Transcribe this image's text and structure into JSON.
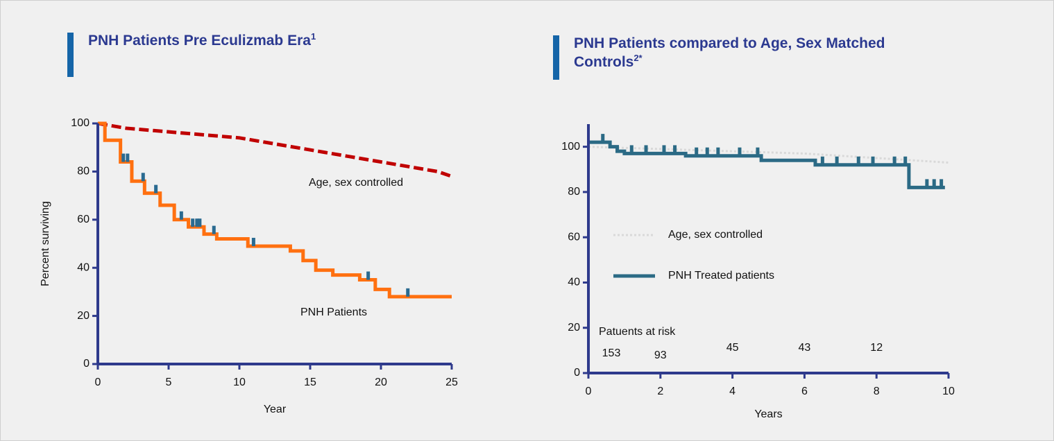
{
  "chart_data": [
    {
      "type": "line",
      "title": "PNH Patients Pre Eculizmab Era",
      "title_note": "1",
      "xlabel": "Year",
      "ylabel": "Percent surviving",
      "xlim": [
        0,
        25
      ],
      "xticks": [
        0,
        5,
        10,
        15,
        20,
        25
      ],
      "ylim": [
        0,
        100
      ],
      "yticks": [
        0,
        20,
        40,
        60,
        80,
        100
      ],
      "series": [
        {
          "name": "Age, sex controlled",
          "color": "#c00000",
          "style": "dashed",
          "x": [
            0,
            1,
            2,
            4,
            6,
            8,
            10,
            12,
            14,
            16,
            18,
            20,
            22,
            24,
            25
          ],
          "values": [
            100,
            99,
            98,
            97,
            96,
            95,
            94,
            92,
            90,
            88,
            86,
            84,
            82,
            80,
            78
          ]
        },
        {
          "name": "PNH Patients",
          "color": "#ff7010",
          "style": "step",
          "censor_color": "#2a6a90",
          "x": [
            0,
            0.5,
            1.6,
            2.4,
            3.3,
            4.4,
            5.4,
            6.4,
            7.5,
            8.4,
            10.6,
            13.6,
            14.5,
            15.4,
            16.6,
            18.5,
            19.6,
            20.6,
            25
          ],
          "values": [
            100,
            93,
            84,
            76,
            71,
            66,
            60,
            57,
            54,
            52,
            49,
            47,
            43,
            39,
            37,
            35,
            31,
            28,
            28
          ],
          "censored_x": [
            1.8,
            2.1,
            3.2,
            4.1,
            5.9,
            6.7,
            7.0,
            7.2,
            8.2,
            11.0,
            19.1,
            21.9
          ]
        }
      ]
    },
    {
      "type": "line",
      "title": "PNH Patients compared to Age, Sex Matched Controls",
      "title_note": "2*",
      "xlabel": "Years",
      "xlim": [
        0,
        10
      ],
      "xticks": [
        0,
        2,
        4,
        6,
        8,
        10
      ],
      "ylim": [
        0,
        110
      ],
      "yticks": [
        0,
        20,
        40,
        60,
        80,
        100
      ],
      "legend": true,
      "series": [
        {
          "name": "Age, sex controlled",
          "color": "#d9d9d9",
          "style": "dotted",
          "x": [
            0,
            2,
            4,
            6,
            8,
            10
          ],
          "values": [
            100,
            99,
            98,
            97,
            95,
            93
          ]
        },
        {
          "name": "PNH Treated patients",
          "color": "#2b6a85",
          "style": "step",
          "censor_color": "#2b6a85",
          "x": [
            0,
            0.6,
            0.8,
            1.0,
            2.7,
            4.8,
            6.3,
            8.9,
            9.9
          ],
          "values": [
            102,
            100,
            98,
            97,
            96,
            94,
            92,
            82,
            82
          ],
          "censored_x": [
            0.4,
            1.2,
            1.6,
            2.1,
            2.4,
            3.0,
            3.3,
            3.6,
            4.2,
            4.7,
            6.5,
            6.9,
            7.5,
            7.9,
            8.5,
            8.8,
            9.4,
            9.6,
            9.8
          ]
        }
      ],
      "at_risk": {
        "label": "Patuents at risk",
        "values": [
          153,
          93,
          45,
          43,
          12
        ]
      }
    }
  ]
}
